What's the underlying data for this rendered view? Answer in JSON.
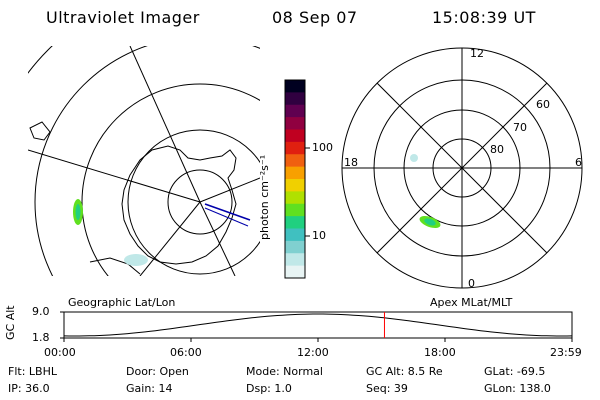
{
  "header": {
    "instrument": "Ultraviolet Imager",
    "date": "08 Sep 07",
    "time": "15:08:39 UT"
  },
  "panels": {
    "left_label": "Geographic Lat/Lon",
    "right_label": "Apex MLat/MLT",
    "right_mlt_labels": {
      "top": "12",
      "left": "18",
      "right": "6",
      "bottom": "0"
    },
    "right_lat_labels": [
      "60",
      "70",
      "80"
    ]
  },
  "colorbar": {
    "label": "photon cm⁻²s⁻¹",
    "ticks": [
      "100",
      "10"
    ],
    "colors": [
      "#000020",
      "#300040",
      "#600050",
      "#900040",
      "#c00020",
      "#e02010",
      "#f06010",
      "#f8a000",
      "#f0d000",
      "#b0e000",
      "#60e020",
      "#20d080",
      "#40c0c0",
      "#80d0d0",
      "#c0e8e8",
      "#e8f4f4"
    ]
  },
  "alt_plot": {
    "ylabel": "GC Alt",
    "y_ticks": [
      "9.0",
      "1.8"
    ],
    "x_ticks": [
      "00:00",
      "06:00",
      "12:00",
      "18:00",
      "23:59"
    ],
    "current_time_hours": 15.14,
    "line_color": "#000000",
    "marker_color": "#ff0000"
  },
  "footer": {
    "flt": "Flt: LBHL",
    "ip": "IP: 36.0",
    "door": "Door: Open",
    "gain": "Gain: 14",
    "mode": "Mode: Normal",
    "dsp": "Dsp:    1.0",
    "gcalt": "GC Alt: 8.5 Re",
    "seq": "Seq: 39",
    "glat": "GLat: -69.5",
    "glon": "GLon: 138.0"
  }
}
